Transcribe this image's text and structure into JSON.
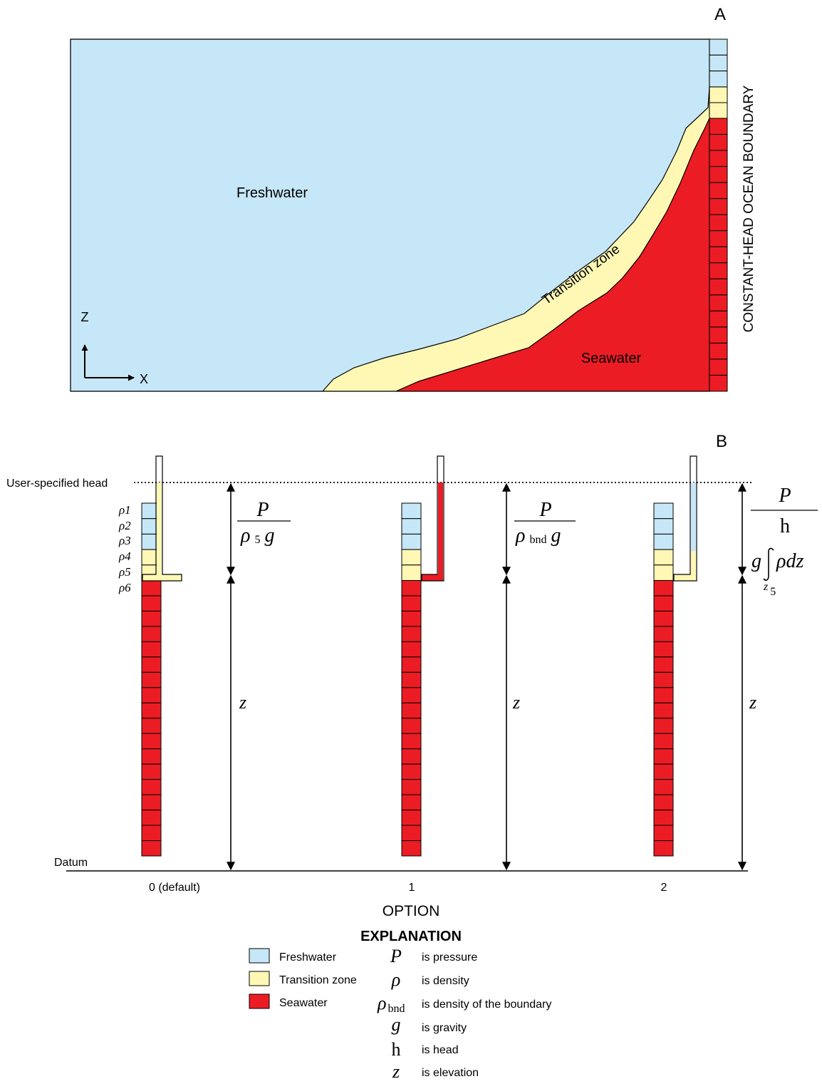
{
  "panel_a": {
    "label": "A",
    "freshwater": "Freshwater",
    "transition": "Transition zone",
    "seawater": "Seawater",
    "boundary": "CONSTANT-HEAD OCEAN BOUNDARY",
    "axis_z": "Z",
    "axis_x": "X"
  },
  "panel_b": {
    "label": "B",
    "head_label": "User-specified head",
    "datum_label": "Datum",
    "rho_labels": [
      "ρ1",
      "ρ2",
      "ρ3",
      "ρ4",
      "ρ5",
      "ρ6"
    ],
    "options": [
      "0 (default)",
      "1",
      "2"
    ],
    "axis_title": "OPTION",
    "eq0": {
      "num": "P",
      "den_rho": "ρ",
      "den_sub": "5",
      "den_g": "g"
    },
    "eq1": {
      "num": "P",
      "den_rho": "ρ",
      "den_sub": "bnd",
      "den_g": "g"
    },
    "eq2": {
      "num": "P",
      "den_h": "h",
      "g": "g",
      "integrand": "ρdz",
      "lower": "z",
      "lower_sub": "5"
    },
    "z_label": "z"
  },
  "explanation": {
    "title": "EXPLANATION",
    "swatches": [
      {
        "label": "Freshwater",
        "color": "#c6e7f7"
      },
      {
        "label": "Transition zone",
        "color": "#fff8b4"
      },
      {
        "label": "Seawater",
        "color": "#ec1c24"
      }
    ],
    "symbols": [
      {
        "symbol": "P",
        "sub": "",
        "text": "is pressure"
      },
      {
        "symbol": "ρ",
        "sub": "",
        "text": "is density"
      },
      {
        "symbol": "ρ",
        "sub": "bnd",
        "text": "is density of the boundary"
      },
      {
        "symbol": "g",
        "sub": "",
        "text": "is gravity"
      },
      {
        "symbol": "h",
        "sub": "",
        "text": "is head"
      },
      {
        "symbol": "z",
        "sub": "",
        "text": "is elevation"
      }
    ]
  }
}
